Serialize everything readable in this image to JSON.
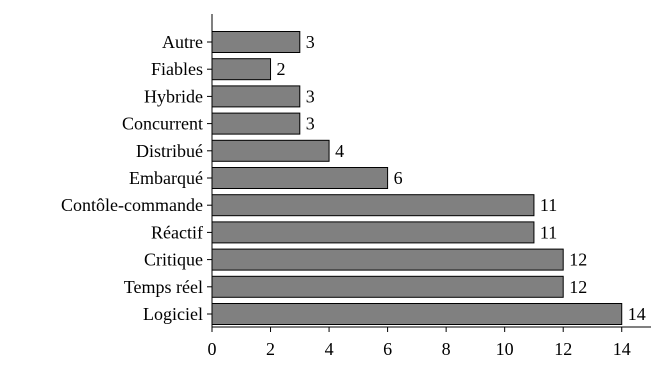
{
  "chart_data": {
    "type": "bar",
    "orientation": "horizontal",
    "categories": [
      "Autre",
      "Fiables",
      "Hybride",
      "Concurrent",
      "Distribué",
      "Embarqué",
      "Contôle-commande",
      "Réactif",
      "Critique",
      "Temps réel",
      "Logiciel"
    ],
    "values": [
      3,
      2,
      3,
      3,
      4,
      6,
      11,
      11,
      12,
      12,
      14
    ],
    "data_labels": [
      "3",
      "2",
      "3",
      "3",
      "4",
      "6",
      "11",
      "11",
      "12",
      "12",
      "14"
    ],
    "x_ticks": [
      0,
      2,
      4,
      6,
      8,
      10,
      12,
      14
    ],
    "x_tick_labels": [
      "0",
      "2",
      "4",
      "6",
      "8",
      "10",
      "12",
      "14"
    ],
    "xlim": [
      0,
      15
    ],
    "title": "",
    "xlabel": "",
    "ylabel": "",
    "grid": false,
    "legend": "none",
    "bar_color": "#808080",
    "bar_edge_color": "#000000"
  }
}
